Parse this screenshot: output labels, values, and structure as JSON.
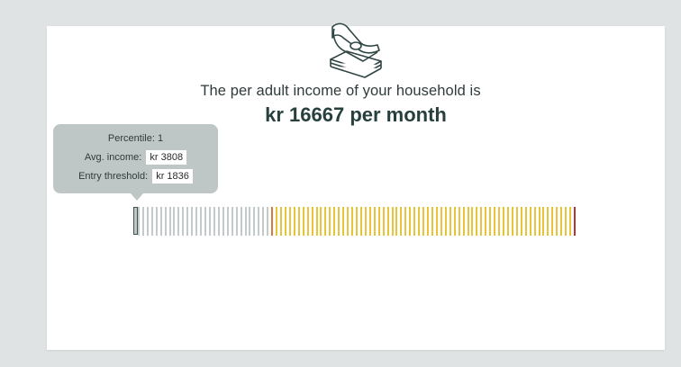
{
  "icon": "money-stack-icon",
  "result": {
    "intro": "The per adult income of your household is",
    "amount": "kr 16667 per month"
  },
  "tooltip": {
    "percentile_label": "Percentile: 1",
    "avg_income_label": "Avg. income:",
    "avg_income_value": "kr 3808",
    "entry_threshold_label": "Entry threshold:",
    "entry_threshold_value": "kr 1836"
  },
  "percentile_bar": {
    "total_percentiles": 100,
    "selected_percentile": 1,
    "household_percentile": 32,
    "colors": {
      "below": "#c3cacb",
      "household": "#d97a3a",
      "above": "#e7c43a",
      "top": "#b73434",
      "selected_outline": "#3f5150"
    }
  }
}
